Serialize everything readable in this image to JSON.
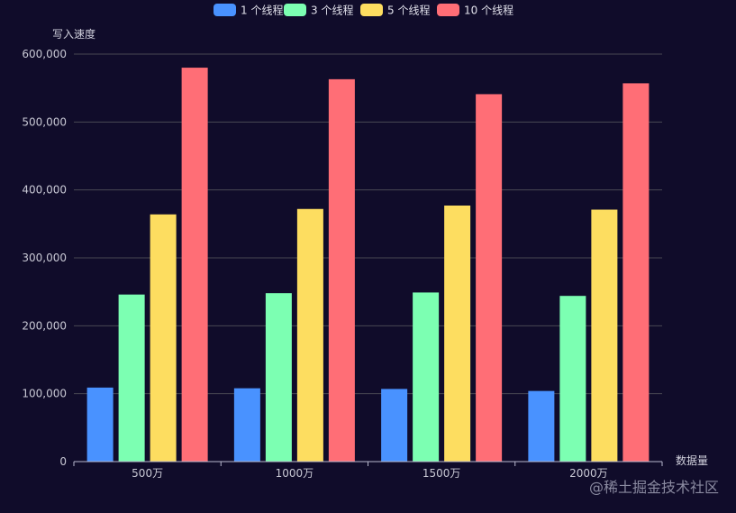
{
  "chart_data": {
    "type": "bar",
    "title": "",
    "xlabel": "数据量",
    "ylabel": "写入速度",
    "categories": [
      "500万",
      "1000万",
      "1500万",
      "2000万"
    ],
    "series": [
      {
        "name": "1 个线程",
        "color": "#4992ff",
        "values": [
          109000,
          108000,
          107000,
          104000
        ]
      },
      {
        "name": "3 个线程",
        "color": "#7cffb2",
        "values": [
          246000,
          248000,
          249000,
          244000
        ]
      },
      {
        "name": "5 个线程",
        "color": "#fddd60",
        "values": [
          364000,
          372000,
          377000,
          371000
        ]
      },
      {
        "name": "10 个线程",
        "color": "#ff6e76",
        "values": [
          580000,
          563000,
          541000,
          557000
        ]
      }
    ],
    "ylim": [
      0,
      600000
    ],
    "yticks": [
      0,
      100000,
      200000,
      300000,
      400000,
      500000,
      600000
    ],
    "ytick_labels": [
      "0",
      "100,000",
      "200,000",
      "300,000",
      "400,000",
      "500,000",
      "600,000"
    ],
    "grid": true,
    "legend_position": "top-center"
  },
  "watermark": "@稀土掘金技术社区",
  "colors": {
    "background": "#100c2a",
    "grid": "#484753",
    "axis": "#b9b8ce"
  }
}
